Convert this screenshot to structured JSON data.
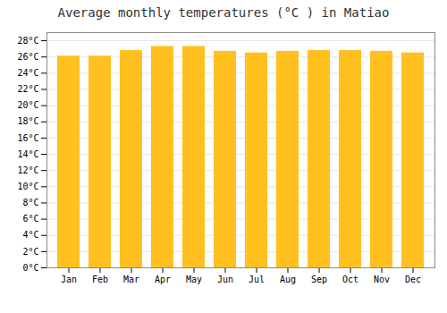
{
  "chart_data": {
    "type": "bar",
    "title": "Average monthly temperatures (°C ) in Matiao",
    "categories": [
      "Jan",
      "Feb",
      "Mar",
      "Apr",
      "May",
      "Jun",
      "Jul",
      "Aug",
      "Sep",
      "Oct",
      "Nov",
      "Dec"
    ],
    "values": [
      26.1,
      26.1,
      26.8,
      27.3,
      27.3,
      26.7,
      26.5,
      26.7,
      26.8,
      26.8,
      26.7,
      26.5
    ],
    "color": "#FFC020",
    "ylim": [
      0,
      29
    ],
    "yticks": [
      {
        "value": 0,
        "label": "0°C"
      },
      {
        "value": 2,
        "label": "2°C"
      },
      {
        "value": 4,
        "label": "4°C"
      },
      {
        "value": 6,
        "label": "6°C"
      },
      {
        "value": 8,
        "label": "8°C"
      },
      {
        "value": 10,
        "label": "10°C"
      },
      {
        "value": 12,
        "label": "12°C"
      },
      {
        "value": 14,
        "label": "14°C"
      },
      {
        "value": 16,
        "label": "16°C"
      },
      {
        "value": 18,
        "label": "18°C"
      },
      {
        "value": 20,
        "label": "20°C"
      },
      {
        "value": 22,
        "label": "22°C"
      },
      {
        "value": 24,
        "label": "24°C"
      },
      {
        "value": 26,
        "label": "26°C"
      },
      {
        "value": 28,
        "label": "28°C"
      }
    ],
    "grid": true
  }
}
